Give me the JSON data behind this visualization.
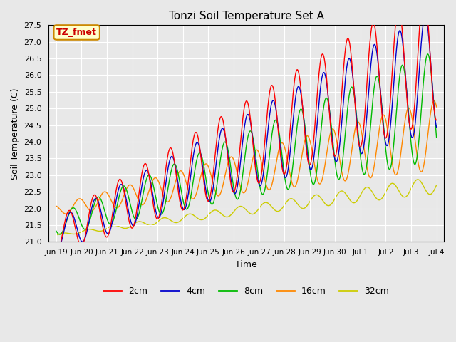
{
  "title": "Tonzi Soil Temperature Set A",
  "xlabel": "Time",
  "ylabel": "Soil Temperature (C)",
  "ylim": [
    21.0,
    27.5
  ],
  "plot_bg_color": "#e8e8e8",
  "annotation_text": "TZ_fmet",
  "annotation_color": "#cc0000",
  "annotation_bg": "#ffffcc",
  "annotation_border": "#cc8800",
  "colors": {
    "2cm": "#ff0000",
    "4cm": "#0000cc",
    "8cm": "#00bb00",
    "16cm": "#ff8800",
    "32cm": "#cccc00"
  },
  "legend_labels": [
    "2cm",
    "4cm",
    "8cm",
    "16cm",
    "32cm"
  ],
  "tick_labels": [
    "Jun 19",
    "Jun 20",
    "Jun 21",
    "Jun 22",
    "Jun 23",
    "Jun 24",
    "Jun 25",
    "Jun 26",
    "Jun 27",
    "Jun 28",
    "Jun 29",
    "Jun 30",
    "Jul 1",
    "Jul 2",
    "Jul 3",
    "Jul 4"
  ],
  "num_days": 15,
  "samples_per_day": 48
}
